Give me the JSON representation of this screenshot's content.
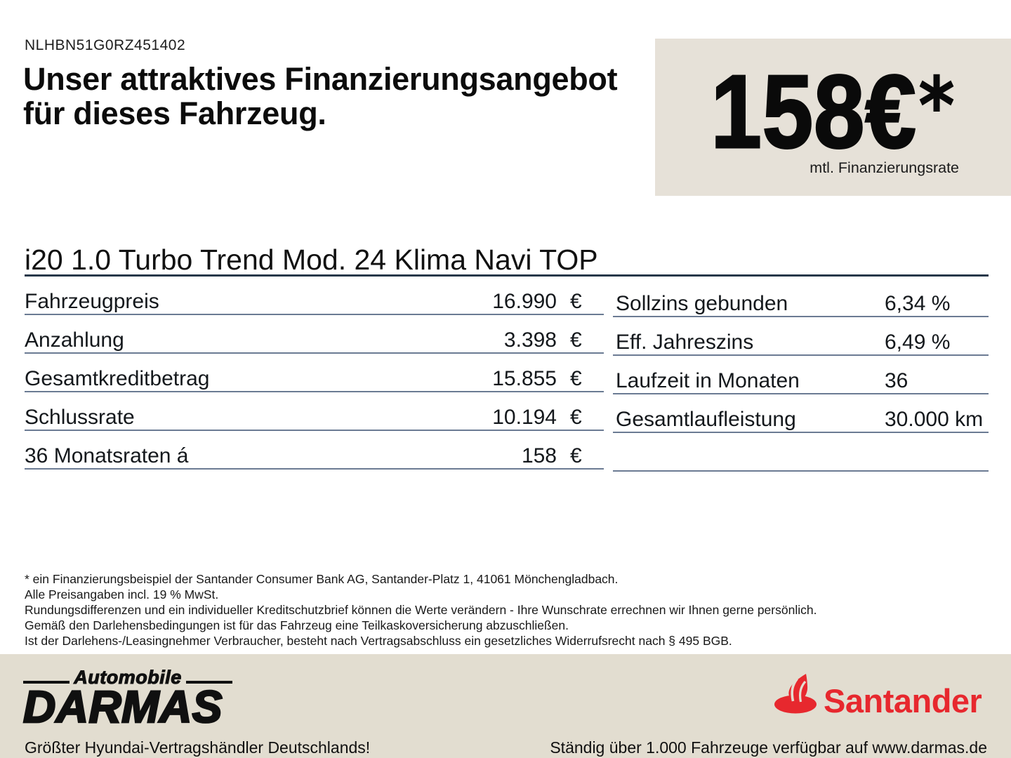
{
  "vin": "NLHBN51G0RZ451402",
  "heading": {
    "line1": "Unser attraktives Finanzierungsangebot",
    "line2": "für dieses Fahrzeug."
  },
  "price_box": {
    "amount": "158€",
    "asterisk": "*",
    "caption": "mtl. Finanzierungsrate"
  },
  "vehicle_title": "i20 1.0 Turbo Trend Mod. 24 Klima Navi TOP",
  "finance_table": {
    "left_rows": [
      {
        "label": "Fahrzeugpreis",
        "value": "16.990",
        "unit": "€"
      },
      {
        "label": "Anzahlung",
        "value": "3.398",
        "unit": "€"
      },
      {
        "label": "Gesamtkreditbetrag",
        "value": "15.855",
        "unit": "€"
      },
      {
        "label": "Schlussrate",
        "value": "10.194",
        "unit": "€"
      },
      {
        "label": "36 Monatsraten á",
        "value": "158",
        "unit": "€"
      }
    ],
    "right_rows": [
      {
        "label": "Sollzins gebunden",
        "value": "6,34 %"
      },
      {
        "label": "Eff. Jahreszins",
        "value": "6,49 %"
      },
      {
        "label": "Laufzeit in Monaten",
        "value": "36"
      },
      {
        "label": "Gesamtlaufleistung",
        "value": "30.000 km"
      }
    ]
  },
  "disclaimer_lines": [
    "* ein Finanzierungsbeispiel der Santander Consumer Bank AG, Santander-Platz 1, 41061 Mönchengladbach.",
    "Alle Preisangaben incl. 19 % MwSt.",
    "Rundungsdifferenzen und ein individueller Kreditschutzbrief können die Werte verändern - Ihre Wunschrate errechnen wir Ihnen gerne persönlich.",
    "Gemäß den Darlehensbedingungen ist für das Fahrzeug eine Teilkaskoversicherung abzuschließen.",
    "Ist der Darlehens-/Leasingnehmer Verbraucher, besteht nach Vertragsabschluss ein gesetzliches Widerrufsrecht nach § 495 BGB."
  ],
  "footer": {
    "dealer_logo_top": "Automobile",
    "dealer_logo_name": "DARMAS",
    "dealer_tagline": "Größter Hyundai-Vertragshändler Deutschlands!",
    "bank_logo": "Santander",
    "bank_tagline": "Ständig über 1.000 Fahrzeuge verfügbar auf www.darmas.de"
  },
  "colors": {
    "beige_box": "#E6E1D8",
    "beige_footer": "#E2DDD0",
    "row_line": "#6B7B93",
    "title_line": "#27384A",
    "santander_red": "#E7282E"
  }
}
